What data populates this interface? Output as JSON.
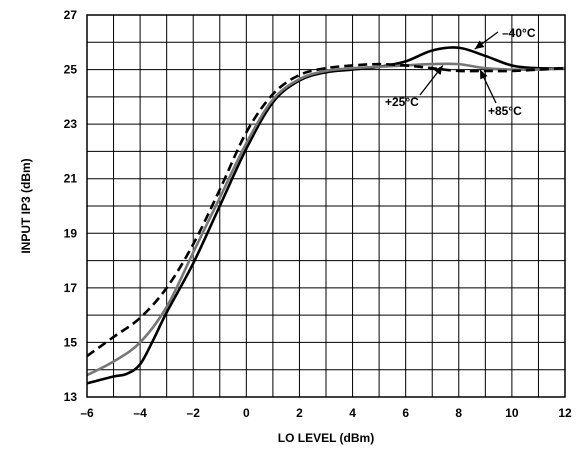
{
  "chart_data": {
    "type": "line",
    "title": "",
    "xlabel": "LO LEVEL (dBm)",
    "ylabel": "INPUT IP3 (dBm)",
    "xlim": [
      -6,
      12
    ],
    "ylim": [
      13,
      27
    ],
    "xticks": [
      -6,
      -4,
      -2,
      0,
      2,
      4,
      6,
      8,
      10,
      12
    ],
    "xtick_labels": [
      "–6",
      "–4",
      "–2",
      "0",
      "2",
      "4",
      "6",
      "8",
      "10",
      "12"
    ],
    "yticks": [
      13,
      15,
      17,
      19,
      21,
      23,
      25,
      27
    ],
    "ytick_labels": [
      "13",
      "15",
      "17",
      "19",
      "21",
      "23",
      "25",
      "27"
    ],
    "grid": true,
    "legend": "none",
    "series": [
      {
        "label_ref": "annotation-minus40",
        "color": "#000000",
        "style": "solid",
        "points": [
          [
            -6,
            13.5
          ],
          [
            -5,
            13.75
          ],
          [
            -4.5,
            13.85
          ],
          [
            -4,
            14.2
          ],
          [
            -3.5,
            15.1
          ],
          [
            -3,
            16.1
          ],
          [
            -2,
            17.9
          ],
          [
            -1,
            20.0
          ],
          [
            0,
            22.1
          ],
          [
            1,
            23.8
          ],
          [
            2,
            24.6
          ],
          [
            3,
            24.9
          ],
          [
            4,
            25.0
          ],
          [
            5,
            25.1
          ],
          [
            6,
            25.3
          ],
          [
            7,
            25.7
          ],
          [
            8,
            25.8
          ],
          [
            9,
            25.5
          ],
          [
            10,
            25.15
          ],
          [
            11,
            25.05
          ],
          [
            12,
            25.05
          ]
        ]
      },
      {
        "label_ref": "annotation-plus25",
        "color": "#777777",
        "style": "solid",
        "points": [
          [
            -6,
            13.8
          ],
          [
            -5,
            14.3
          ],
          [
            -4,
            15.0
          ],
          [
            -3,
            16.3
          ],
          [
            -2,
            18.3
          ],
          [
            -1,
            20.3
          ],
          [
            0,
            22.3
          ],
          [
            1,
            23.9
          ],
          [
            2,
            24.65
          ],
          [
            3,
            24.95
          ],
          [
            4,
            25.05
          ],
          [
            5,
            25.1
          ],
          [
            6,
            25.15
          ],
          [
            7,
            25.2
          ],
          [
            8,
            25.2
          ],
          [
            9,
            25.05
          ],
          [
            10,
            25.0
          ],
          [
            11,
            25.0
          ],
          [
            12,
            25.05
          ]
        ]
      },
      {
        "label_ref": "annotation-plus85",
        "color": "#000000",
        "style": "dashed",
        "points": [
          [
            -6,
            14.5
          ],
          [
            -5,
            15.2
          ],
          [
            -4,
            15.9
          ],
          [
            -3,
            17.0
          ],
          [
            -2,
            18.6
          ],
          [
            -1,
            20.6
          ],
          [
            0,
            22.7
          ],
          [
            1,
            24.1
          ],
          [
            2,
            24.8
          ],
          [
            3,
            25.05
          ],
          [
            4,
            25.15
          ],
          [
            5,
            25.2
          ],
          [
            6,
            25.15
          ],
          [
            7,
            25.05
          ],
          [
            8,
            24.95
          ],
          [
            9,
            24.95
          ],
          [
            10,
            24.95
          ],
          [
            11,
            25.0
          ],
          [
            12,
            25.05
          ]
        ]
      }
    ],
    "annotations": [
      {
        "id": "annotation-minus40",
        "text": "–40°C",
        "arrow_to": [
          8.6,
          25.75
        ]
      },
      {
        "id": "annotation-plus25",
        "text": "+25°C",
        "arrow_to": [
          7.4,
          25.15
        ]
      },
      {
        "id": "annotation-plus85",
        "text": "+85°C",
        "arrow_to": [
          8.8,
          25.0
        ]
      }
    ]
  }
}
